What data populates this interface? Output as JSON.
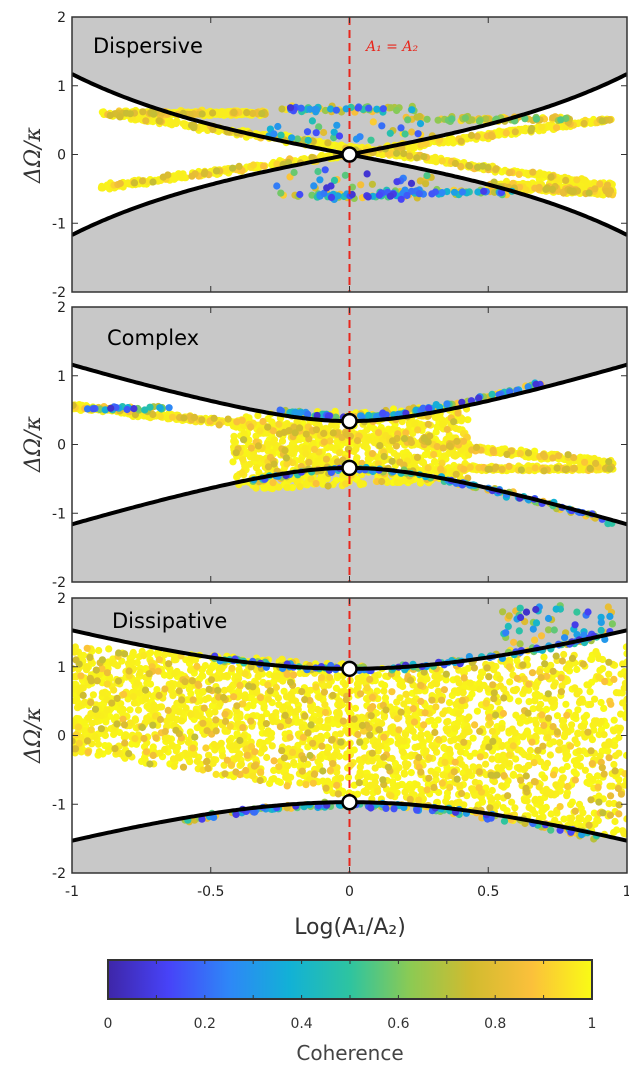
{
  "chart_data": [
    {
      "type": "scatter",
      "panel_label": "Dispersive",
      "ylabel": "ΔΩ/κ",
      "xlabel": "",
      "xlim": [
        -1,
        1
      ],
      "ylim": [
        -2,
        2
      ],
      "yticks": [
        "-2",
        "-1",
        "0",
        "1",
        "2"
      ],
      "annotation": "A₁ = A₂",
      "reference_line_x": 0,
      "exceptional_points": [
        [
          0,
          0
        ]
      ],
      "boundary_curves": [
        {
          "x": [
            -1,
            -0.5,
            0,
            0.5,
            1
          ],
          "y": [
            1.17,
            0.56,
            0,
            -0.56,
            -1.17
          ]
        },
        {
          "x": [
            -1,
            -0.5,
            0,
            0.5,
            1
          ],
          "y": [
            -1.17,
            -0.56,
            0,
            0.56,
            1.17
          ]
        }
      ],
      "shading": "grey outside the boundary curves",
      "point_clusters": [
        {
          "x_range": [
            -0.9,
            0.95
          ],
          "y_start": [
            0.55,
            0.65
          ],
          "y_end": [
            -0.4,
            -0.6
          ],
          "coherence": "mostly ~1"
        },
        {
          "x_range": [
            -0.9,
            0.95
          ],
          "y_start": [
            -0.6,
            -0.35
          ],
          "y_end": [
            0.45,
            0.55
          ],
          "coherence": "mostly ~1"
        },
        {
          "x_range": [
            -0.2,
            0.25
          ],
          "y_values": [
            0.65,
            -0.6
          ],
          "coherence": "0.1–0.9"
        }
      ]
    },
    {
      "type": "scatter",
      "panel_label": "Complex",
      "ylabel": "ΔΩ/κ",
      "xlabel": "",
      "xlim": [
        -1,
        1
      ],
      "ylim": [
        -2,
        2
      ],
      "yticks": [
        "-2",
        "-1",
        "0",
        "1",
        "2"
      ],
      "reference_line_x": 0,
      "exceptional_points": [
        [
          0,
          0.34
        ],
        [
          0,
          -0.34
        ]
      ],
      "boundary_curves": [
        {
          "x": [
            -1,
            -0.5,
            0,
            0.5,
            1
          ],
          "y": [
            1.22,
            0.56,
            0.34,
            0.56,
            1.22
          ]
        },
        {
          "x": [
            -1,
            -0.5,
            0,
            0.5,
            1
          ],
          "y": [
            -1.22,
            -0.56,
            -0.34,
            -0.56,
            -1.22
          ]
        }
      ],
      "shading": "grey outside the boundary curves",
      "point_clusters": [
        {
          "x_range": [
            -1,
            0.95
          ],
          "y_start": [
            0.45,
            0.6
          ],
          "y_end": [
            -0.3,
            -0.45
          ],
          "coherence": "mostly ~1"
        },
        {
          "x_range": [
            -0.45,
            0.45
          ],
          "y_range": [
            -0.7,
            0.5
          ],
          "coherence": "mostly ~1"
        },
        {
          "x_range": [
            -0.35,
            0.95
          ],
          "y_values": [
            0.4,
            -0.35
          ],
          "coherence": "0.1–0.9"
        }
      ]
    },
    {
      "type": "scatter",
      "panel_label": "Dissipative",
      "ylabel": "ΔΩ/κ",
      "xlabel": "Log(A₁/A₂)",
      "xlim": [
        -1,
        1
      ],
      "ylim": [
        -2,
        2
      ],
      "xticks": [
        "-1",
        "-0.5",
        "0",
        "0.5",
        "1"
      ],
      "yticks": [
        "-2",
        "-1",
        "0",
        "1",
        "2"
      ],
      "reference_line_x": 0,
      "exceptional_points": [
        [
          0,
          0.97
        ],
        [
          0,
          -0.97
        ]
      ],
      "boundary_curves": [
        {
          "x": [
            -1,
            -0.5,
            0,
            0.5,
            1
          ],
          "y": [
            1.53,
            1.1,
            0.97,
            1.1,
            1.53
          ]
        },
        {
          "x": [
            -1,
            -0.5,
            0,
            0.5,
            1
          ],
          "y": [
            -1.53,
            -1.1,
            -0.97,
            -1.1,
            -1.53
          ]
        }
      ],
      "shading": "grey outside the boundary curves",
      "point_clusters": [
        {
          "x_range": [
            -1,
            1
          ],
          "y_range": [
            -1.7,
            1.9
          ],
          "shape": "parallelogram tilted from upper-left to lower-right",
          "coherence": "mostly ~1"
        },
        {
          "x_range": [
            -0.5,
            0.95
          ],
          "y_values": [
            1.0,
            -1.0
          ],
          "coherence": "0.1–0.9"
        }
      ]
    }
  ],
  "colorbar": {
    "label": "Coherence",
    "ticks": [
      "0",
      "0.2",
      "0.4",
      "0.6",
      "0.8",
      "1"
    ],
    "range": [
      0,
      1
    ],
    "colormap": [
      "#3e26a8",
      "#4743f8",
      "#2e87f7",
      "#12b1d6",
      "#2ec4a0",
      "#8cca53",
      "#d1bb2f",
      "#fbc03b",
      "#f9fb15"
    ]
  },
  "colors": {
    "shading": "#c8c8c8",
    "boundary": "#000000",
    "reference_line": "#e8261c"
  }
}
